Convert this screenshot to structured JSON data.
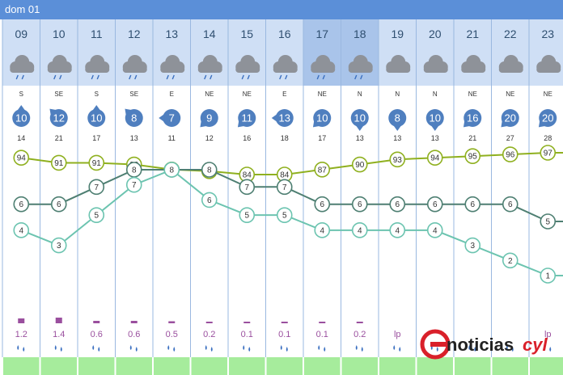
{
  "header": {
    "title": "dom 01"
  },
  "colors": {
    "header_bar": "#5b8fd8",
    "hour_bg_light": "#cfdff5",
    "hour_bg_dark": "#a9c4ea",
    "humidity": "#8fb01f",
    "temperature": "#4e7f72",
    "feels_like": "#6cc4b0",
    "wind_badge": "#4f7fbf",
    "precip": "#9a4f9e",
    "ground": "#a6ec9c"
  },
  "chart_data": {
    "type": "line",
    "x": [
      "09",
      "10",
      "11",
      "12",
      "13",
      "14",
      "15",
      "16",
      "17",
      "18",
      "19",
      "20",
      "21",
      "22",
      "23"
    ],
    "weather_icons": [
      "cloud-rain-icon",
      "cloud-rain-icon",
      "cloud-rain-icon",
      "cloud-rain-icon",
      "cloud-rain-icon",
      "cloud-rain-icon",
      "cloud-rain-icon",
      "cloud-rain-icon",
      "cloud-rain-icon",
      "cloud-rain-icon",
      "cloud-icon",
      "cloud-icon",
      "cloud-icon",
      "cloud-icon",
      "cloud-icon"
    ],
    "wind_direction": [
      "S",
      "SE",
      "S",
      "SE",
      "E",
      "NE",
      "NE",
      "E",
      "NE",
      "N",
      "N",
      "N",
      "NE",
      "NE",
      "NE"
    ],
    "wind_speed": [
      10,
      12,
      10,
      8,
      7,
      9,
      11,
      13,
      10,
      10,
      8,
      10,
      16,
      20,
      20
    ],
    "wind_gust": [
      14,
      21,
      17,
      13,
      11,
      12,
      16,
      18,
      17,
      13,
      13,
      13,
      21,
      27,
      28
    ],
    "series": [
      {
        "key": "humidity",
        "values": [
          94,
          91,
          91,
          90,
          87,
          86,
          84,
          84,
          87,
          90,
          93,
          94,
          95,
          96,
          97
        ]
      },
      {
        "key": "temperature",
        "values": [
          6,
          6,
          7,
          8,
          8,
          8,
          7,
          7,
          6,
          6,
          6,
          6,
          6,
          6,
          5
        ]
      },
      {
        "key": "feels_like",
        "values": [
          4,
          3,
          5,
          7,
          8,
          6,
          5,
          5,
          4,
          4,
          4,
          4,
          3,
          2,
          1
        ]
      }
    ],
    "precipitation_labels": [
      "1.2",
      "1.4",
      "0.6",
      "0.6",
      "0.5",
      "0.2",
      "0.1",
      "0.1",
      "0.1",
      "0.2",
      "lp",
      "",
      "",
      "",
      "lp"
    ],
    "precipitation_values": [
      1.2,
      1.4,
      0.6,
      0.6,
      0.5,
      0.2,
      0.1,
      0.1,
      0.1,
      0.2,
      0,
      0,
      0,
      0,
      0
    ]
  },
  "logo": {
    "brand_part1": "noticias",
    "brand_part2": "cyl"
  }
}
